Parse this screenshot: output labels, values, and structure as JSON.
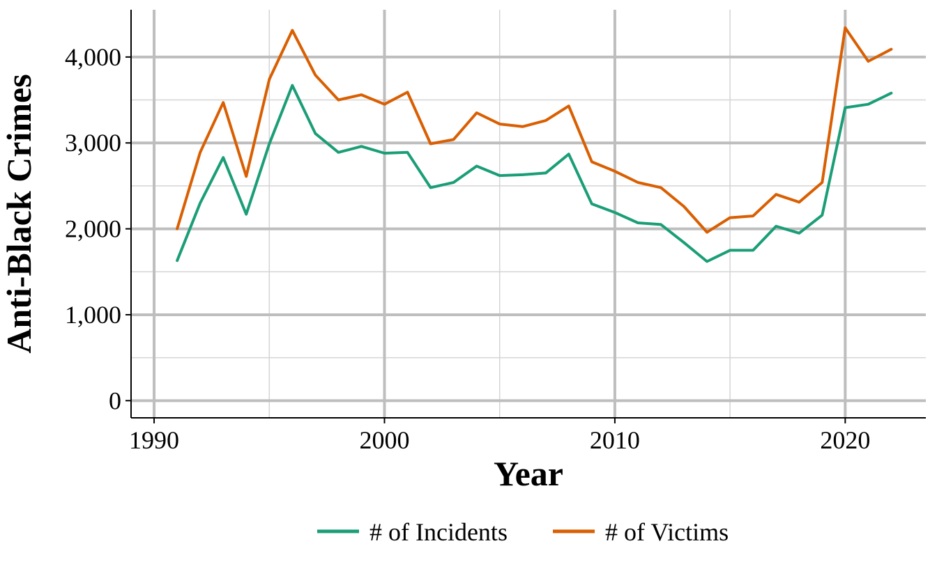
{
  "chart_data": {
    "type": "line",
    "xlabel": "Year",
    "ylabel": "Anti-Black Crimes",
    "xlim": [
      1989,
      2023.5
    ],
    "ylim": [
      -200,
      4550
    ],
    "x_ticks": [
      1990,
      2000,
      2010,
      2020
    ],
    "x_tick_labels": [
      "1990",
      "2000",
      "2010",
      "2020"
    ],
    "x_minor_ticks": [
      1995,
      2005,
      2015
    ],
    "y_ticks": [
      0,
      1000,
      2000,
      3000,
      4000
    ],
    "y_tick_labels": [
      "0",
      "1,000",
      "2,000",
      "3,000",
      "4,000"
    ],
    "y_minor_ticks": [
      500,
      1500,
      2500,
      3500
    ],
    "grid": true,
    "legend_position": "bottom",
    "x": [
      1991,
      1992,
      1993,
      1994,
      1995,
      1996,
      1997,
      1998,
      1999,
      2000,
      2001,
      2002,
      2003,
      2004,
      2005,
      2006,
      2007,
      2008,
      2009,
      2010,
      2011,
      2012,
      2013,
      2014,
      2015,
      2016,
      2017,
      2018,
      2019,
      2020,
      2021,
      2022
    ],
    "series": [
      {
        "name": "# of Incidents",
        "color": "#1b9e77",
        "values": [
          1630,
          2300,
          2830,
          2170,
          2990,
          3670,
          3110,
          2890,
          2960,
          2880,
          2890,
          2480,
          2540,
          2730,
          2620,
          2630,
          2650,
          2870,
          2290,
          2190,
          2070,
          2050,
          1840,
          1620,
          1750,
          1750,
          2030,
          1950,
          2160,
          3410,
          3450,
          3580
        ]
      },
      {
        "name": "# of Victims",
        "color": "#d95f02",
        "values": [
          2000,
          2890,
          3470,
          2610,
          3740,
          4310,
          3790,
          3500,
          3560,
          3450,
          3590,
          2990,
          3040,
          3350,
          3220,
          3190,
          3260,
          3430,
          2780,
          2670,
          2540,
          2480,
          2260,
          1960,
          2130,
          2150,
          2400,
          2310,
          2540,
          4340,
          3950,
          4090
        ]
      }
    ]
  }
}
